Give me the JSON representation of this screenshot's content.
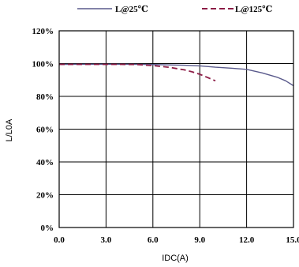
{
  "chart_data": {
    "type": "line",
    "xlabel": "IDC(A)",
    "ylabel": "L/L0A",
    "xlim": [
      0,
      15
    ],
    "ylim": [
      0,
      120
    ],
    "x_ticks": [
      "0.0",
      "3.0",
      "6.0",
      "9.0",
      "12.0",
      "15.0"
    ],
    "y_ticks": [
      "0%",
      "20%",
      "40%",
      "60%",
      "80%",
      "100%",
      "120%"
    ],
    "grid": true,
    "legend_position": "top",
    "series": [
      {
        "name": "L@25℃",
        "color": "#5a5a8c",
        "style": "solid",
        "x": [
          0,
          2,
          4,
          6,
          8,
          9,
          10,
          11,
          12,
          13,
          14,
          14.5,
          15
        ],
        "y": [
          99.5,
          99.6,
          99.6,
          99.4,
          99.0,
          98.6,
          97.8,
          97.2,
          96.5,
          94.3,
          91.5,
          89.5,
          86.5
        ]
      },
      {
        "name": "L@125℃",
        "color": "#8c1c46",
        "style": "dashed",
        "x": [
          0,
          2,
          4,
          5,
          6,
          7,
          8,
          8.5,
          9,
          9.5,
          10
        ],
        "y": [
          99.5,
          99.5,
          99.5,
          99.4,
          98.8,
          97.8,
          96.2,
          95.0,
          93.5,
          91.5,
          89.5
        ]
      }
    ]
  }
}
